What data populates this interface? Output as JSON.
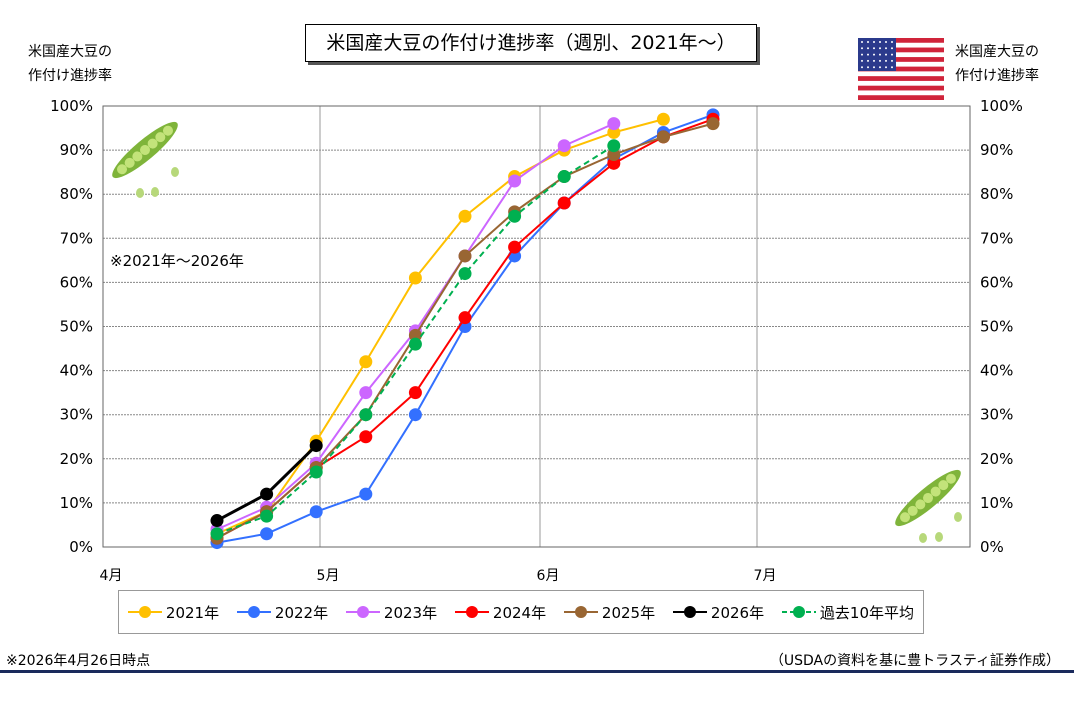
{
  "title": "米国産大豆の作付け進捗率（週別、2021年～）",
  "left_axis_label": [
    "米国産大豆の",
    "作付け進捗率"
  ],
  "right_axis_label": [
    "米国産大豆の",
    "作付け進捗率"
  ],
  "note": "※2021年～2026年",
  "footnote_left": "※2026年4月26日時点",
  "footnote_right": "（USDAの資料を基に豊トラスティ証券作成）",
  "chart_data": {
    "type": "line",
    "title": "米国産大豆の作付け進捗率（週別、2021年～）",
    "xlabel": "",
    "ylabel": "米国産大豆の作付け進捗率",
    "x_ticks": [
      "4月",
      "5月",
      "6月",
      "7月"
    ],
    "y_ticks": [
      "0%",
      "10%",
      "20%",
      "30%",
      "40%",
      "50%",
      "60%",
      "70%",
      "80%",
      "90%",
      "100%"
    ],
    "ylim": [
      0,
      100
    ],
    "grid": "horizontal dotted, vertical at month starts",
    "legend": "bottom",
    "x": [
      "4/17",
      "4/24",
      "5/1",
      "5/8",
      "5/15",
      "5/22",
      "5/29",
      "6/5",
      "6/12",
      "6/19",
      "6/26"
    ],
    "series": [
      {
        "name": "2021年",
        "color": "#FFC000",
        "dash": false,
        "values": [
          3,
          8,
          24,
          42,
          61,
          75,
          84,
          90,
          94,
          97,
          null
        ]
      },
      {
        "name": "2022年",
        "color": "#3370FF",
        "dash": false,
        "values": [
          1,
          3,
          8,
          12,
          30,
          50,
          66,
          78,
          88,
          94,
          98
        ]
      },
      {
        "name": "2023年",
        "color": "#CC66FF",
        "dash": false,
        "values": [
          4,
          9,
          19,
          35,
          49,
          66,
          83,
          91,
          96,
          null,
          null
        ]
      },
      {
        "name": "2024年",
        "color": "#FF0000",
        "dash": false,
        "values": [
          2,
          8,
          18,
          25,
          35,
          52,
          68,
          78,
          87,
          93,
          97
        ]
      },
      {
        "name": "2025年",
        "color": "#996633",
        "dash": false,
        "values": [
          2,
          8,
          18,
          30,
          48,
          66,
          76,
          84,
          89,
          93,
          96
        ]
      },
      {
        "name": "2026年",
        "color": "#000000",
        "dash": false,
        "values": [
          6,
          12,
          23,
          null,
          null,
          null,
          null,
          null,
          null,
          null,
          null
        ]
      },
      {
        "name": "過去10年平均",
        "color": "#00B050",
        "dash": true,
        "values": [
          3,
          7,
          17,
          30,
          46,
          62,
          75,
          84,
          91,
          null,
          null
        ]
      }
    ]
  }
}
